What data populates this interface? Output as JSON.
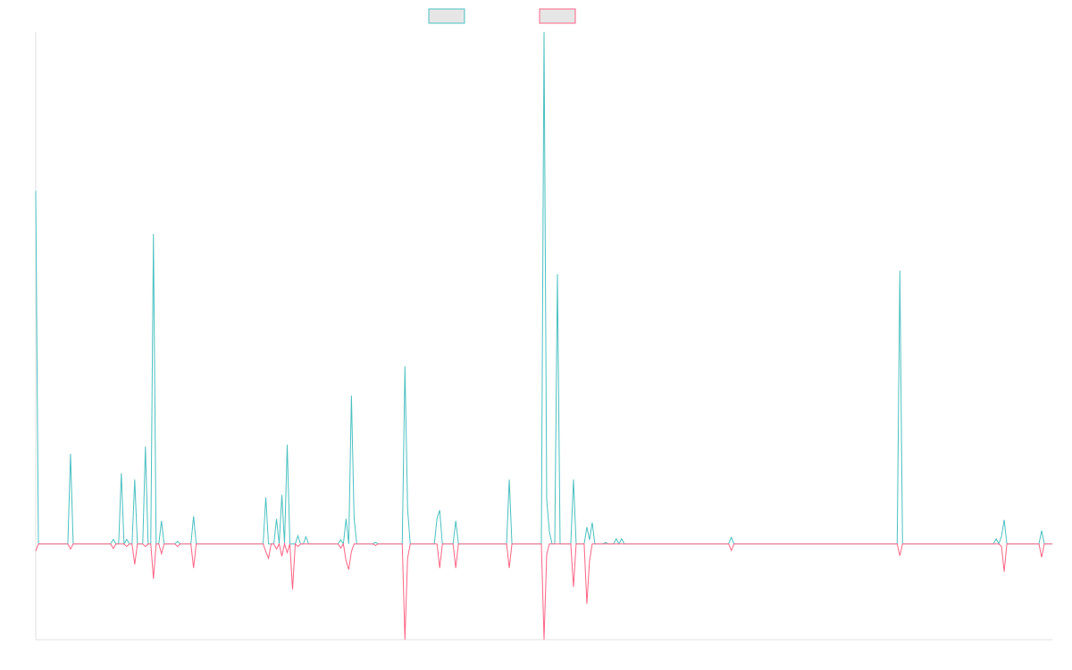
{
  "chart_data": {
    "type": "line",
    "x": [
      0,
      1,
      12,
      13,
      14,
      28,
      29,
      30,
      31,
      32,
      33,
      34,
      35,
      36,
      37,
      38,
      40,
      41,
      42,
      43,
      44,
      45,
      46,
      47,
      48,
      52,
      53,
      54,
      58,
      59,
      60,
      85,
      86,
      87,
      88,
      89,
      90,
      91,
      92,
      93,
      94,
      95,
      96,
      97,
      98,
      99,
      100,
      101,
      102,
      113,
      114,
      115,
      116,
      117,
      118,
      119,
      120,
      126,
      127,
      128,
      137,
      138,
      139,
      140,
      149,
      150,
      151,
      152,
      156,
      157,
      158,
      176,
      177,
      178,
      189,
      190,
      191,
      192,
      193,
      194,
      195,
      196,
      200,
      201,
      202,
      205,
      206,
      207,
      208,
      209,
      212,
      213,
      214,
      216,
      217,
      218,
      219,
      220,
      259,
      260,
      261,
      322,
      323,
      324,
      358,
      359,
      360,
      361,
      362,
      363,
      375,
      376,
      377,
      380
    ],
    "series": [
      {
        "color": "#4bc0c0",
        "values": [
          69,
          0,
          0,
          17.6,
          0,
          0,
          0.9,
          0,
          0,
          13.8,
          0,
          0.9,
          0,
          0,
          12.6,
          0,
          0,
          19,
          0,
          0,
          60.6,
          0,
          0,
          4.5,
          0,
          0,
          0.5,
          0,
          0,
          5.4,
          0,
          0,
          9.1,
          0,
          0,
          0,
          4.9,
          0,
          9.6,
          0,
          19.4,
          0,
          0,
          0,
          1.6,
          0,
          0,
          1.4,
          0,
          0,
          0.8,
          0,
          4.9,
          0,
          29,
          5,
          0,
          0,
          0.3,
          0,
          0,
          34.7,
          6.8,
          0,
          0,
          5,
          6.6,
          0,
          0,
          4.5,
          0,
          0,
          12.6,
          0,
          0,
          100,
          8.6,
          2.4,
          0,
          0,
          52.7,
          0,
          0,
          12.6,
          0,
          0,
          3.3,
          0.8,
          4.2,
          0,
          0,
          0.3,
          0,
          0,
          1,
          0,
          1,
          0,
          0,
          1.3,
          0,
          0,
          53.4,
          0,
          0,
          1,
          0,
          1.5,
          4.7,
          0,
          0,
          2.6,
          0,
          0
        ]
      },
      {
        "color": "#ff6384",
        "values": [
          -1.4,
          0,
          0,
          -1,
          0,
          0,
          -0.9,
          0,
          0,
          0,
          0,
          -0.5,
          0,
          0,
          -4,
          0,
          0,
          -0.5,
          0,
          0,
          -6.8,
          0,
          0,
          -1.9,
          0,
          0,
          -0.5,
          0,
          0,
          -4.7,
          0,
          0,
          -1.5,
          -2.8,
          0,
          0,
          -1,
          0,
          -2.4,
          0,
          -1.7,
          0,
          -8.9,
          0,
          -0.5,
          0,
          0,
          0,
          0,
          0,
          -0.8,
          0,
          -3.3,
          -5,
          -1.5,
          0,
          0,
          0,
          -0.3,
          0,
          0,
          -18.7,
          -2.8,
          0,
          0,
          0,
          -4.7,
          0,
          0,
          -4.7,
          0,
          0,
          -4.7,
          0,
          0,
          -18.7,
          -2,
          0,
          0,
          0,
          0,
          0,
          0,
          -8.4,
          0,
          0,
          -11.7,
          -3.3,
          0,
          0,
          0,
          0,
          0,
          0,
          0,
          0,
          0,
          0,
          0,
          -1.3,
          0,
          0,
          -2.3,
          0,
          0,
          0,
          0,
          -0.5,
          -5.4,
          0,
          0,
          -2.6,
          0,
          0
        ]
      }
    ],
    "xlim": [
      0,
      380
    ],
    "ylim": [
      -18.7,
      100
    ]
  }
}
